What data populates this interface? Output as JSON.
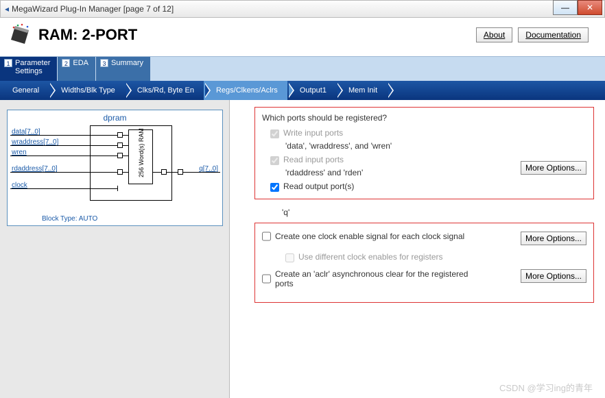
{
  "window": {
    "title": "MegaWizard Plug-In Manager [page 7 of 12]"
  },
  "header": {
    "product": "RAM: 2-PORT",
    "about": "About",
    "documentation": "Documentation"
  },
  "tabs1": [
    {
      "num": "1",
      "label": "Parameter\nSettings",
      "sel": true
    },
    {
      "num": "2",
      "label": "EDA",
      "sel": false
    },
    {
      "num": "3",
      "label": "Summary",
      "sel": false
    }
  ],
  "tabs2": {
    "items": [
      "General",
      "Widths/Blk Type",
      "Clks/Rd, Byte En",
      "Regs/Clkens/Aclrs",
      "Output1",
      "Mem Init"
    ],
    "selectedIndex": 3
  },
  "diagram": {
    "title": "dpram",
    "ports_left": [
      "data[7..0]",
      "wraddress[7..0]",
      "wren",
      "rdaddress[7..0]",
      "clock"
    ],
    "port_right": "q[7..0]",
    "inner": "256 Word(s)\nRAM",
    "blocktype": "Block Type: AUTO"
  },
  "panel1": {
    "question": "Which ports should be registered?",
    "opt1": "Write input ports",
    "opt1_sub": "'data', 'wraddress', and 'wren'",
    "opt2": "Read input ports",
    "opt2_sub": "'rdaddress' and 'rden'",
    "opt3": "Read output port(s)",
    "more": "More Options...",
    "q": "'q'"
  },
  "panel2": {
    "opt1": "Create one clock enable signal for each clock signal",
    "opt1_sub": "Use different clock enables for registers",
    "opt2": "Create an 'aclr' asynchronous clear for the registered ports",
    "more": "More Options..."
  },
  "watermark": "CSDN @学习ing的青年"
}
